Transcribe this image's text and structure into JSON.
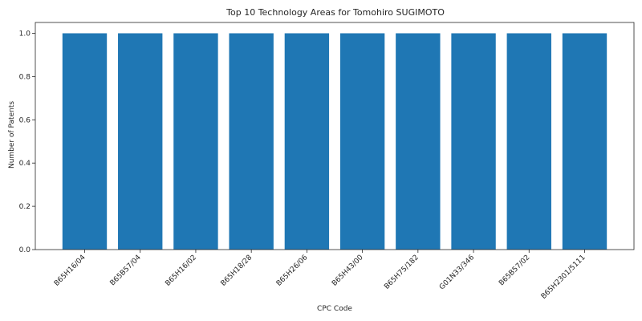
{
  "chart_data": {
    "type": "bar",
    "title": "Top 10 Technology Areas for Tomohiro SUGIMOTO",
    "xlabel": "CPC Code",
    "ylabel": "Number of Patents",
    "categories": [
      "B65H16/04",
      "B65B57/04",
      "B65H16/02",
      "B65H18/28",
      "B65H26/06",
      "B65H43/00",
      "B65H75/182",
      "G01N33/346",
      "B65B57/02",
      "B65H2301/5111"
    ],
    "values": [
      1,
      1,
      1,
      1,
      1,
      1,
      1,
      1,
      1,
      1
    ],
    "ylim": [
      0,
      1.05
    ],
    "yticks": [
      "0.0",
      "0.2",
      "0.4",
      "0.6",
      "0.8",
      "1.0"
    ],
    "bar_color": "#1f77b4",
    "grid": false,
    "legend": "none"
  }
}
